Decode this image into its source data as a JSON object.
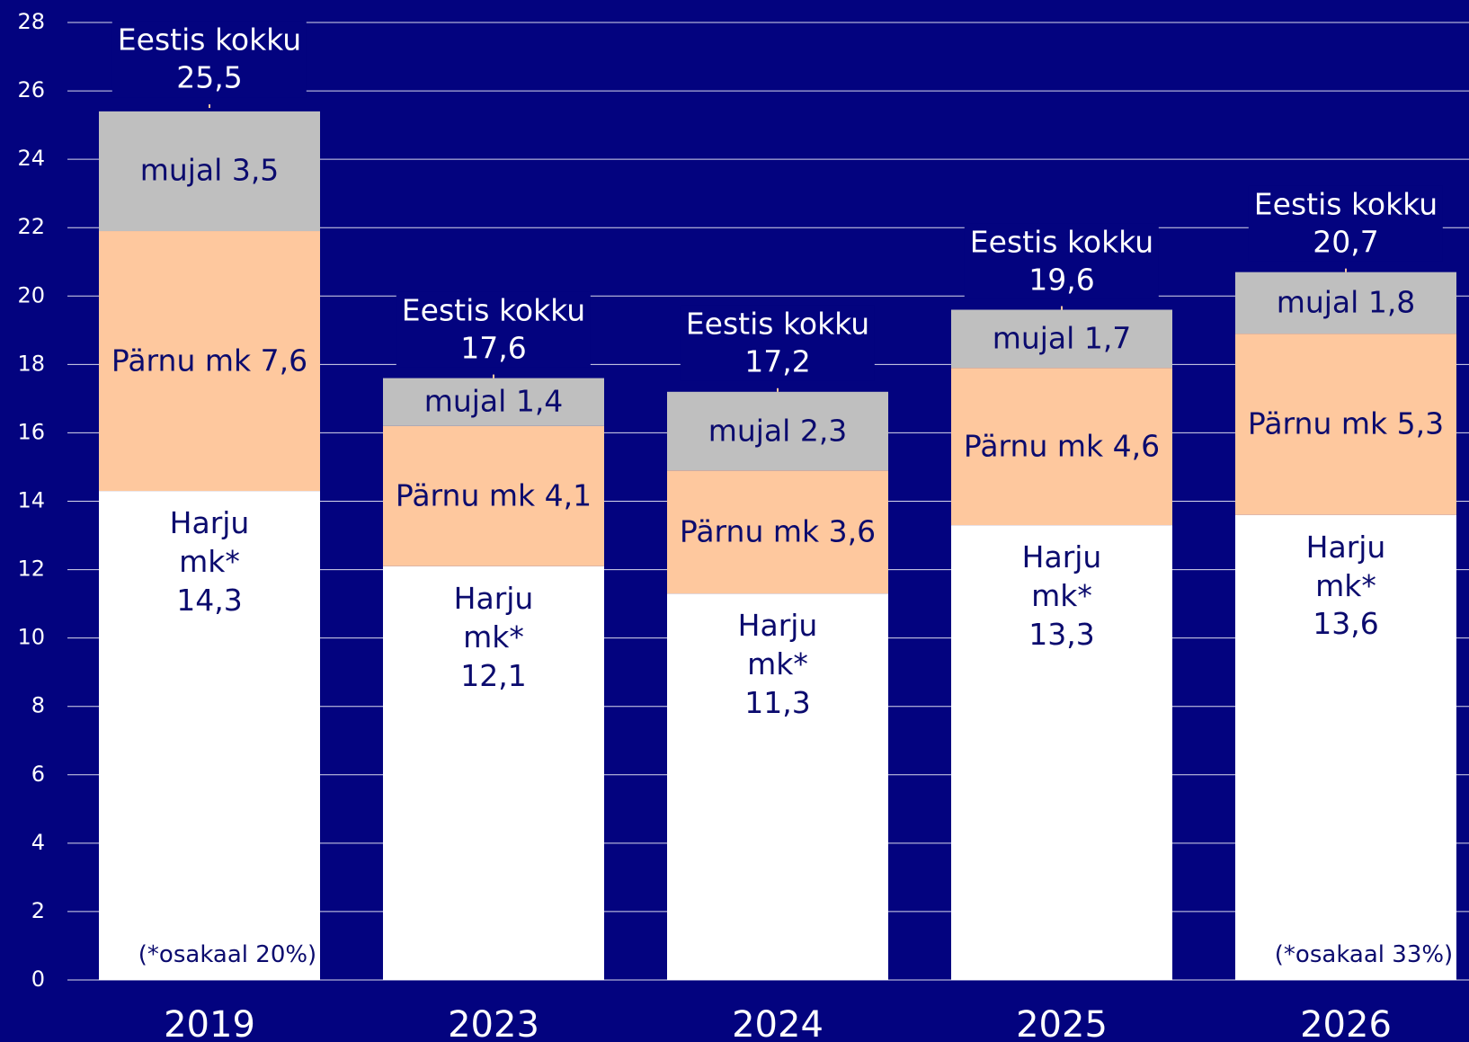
{
  "chart_data": {
    "type": "stacked_bar",
    "categories": [
      "2019",
      "2023",
      "2024",
      "2025",
      "2026"
    ],
    "series": [
      {
        "name": "Harju mk*",
        "color": "#ffffff",
        "values": [
          14.3,
          12.1,
          11.3,
          13.3,
          13.6
        ],
        "value_labels": [
          "14,3",
          "12,1",
          "11,3",
          "13,3",
          "13,6"
        ]
      },
      {
        "name": "Pärnu mk",
        "color": "#fec89e",
        "values": [
          7.6,
          4.1,
          3.6,
          4.6,
          5.3
        ],
        "value_labels": [
          "7,6",
          "4,1",
          "3,6",
          "4,6",
          "5,3"
        ]
      },
      {
        "name": "mujal",
        "color": "#bfbfbf",
        "values": [
          3.5,
          1.4,
          2.3,
          1.7,
          1.8
        ],
        "value_labels": [
          "3,5",
          "1,4",
          "2,3",
          "1,7",
          "1,8"
        ]
      }
    ],
    "totals": {
      "label": "Eestis kokku",
      "values": [
        25.5,
        17.6,
        17.2,
        19.6,
        20.7
      ],
      "value_labels": [
        "25,5",
        "17,6",
        "17,2",
        "19,6",
        "20,7"
      ]
    },
    "annotations": [
      {
        "category": "2019",
        "text": "(*osakaal 20%)"
      },
      {
        "category": "2026",
        "text": "(*osakaal 33%)"
      }
    ],
    "ylim": [
      0,
      28
    ],
    "yticks": [
      0,
      2,
      4,
      6,
      8,
      10,
      12,
      14,
      16,
      18,
      20,
      22,
      24,
      26,
      28
    ],
    "grid": true
  }
}
